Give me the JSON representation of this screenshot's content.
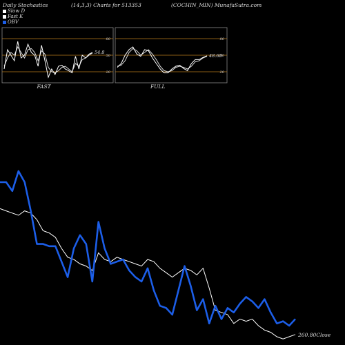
{
  "header": {
    "left": "Daily Stochastics",
    "center": "(14,3,3) Charts for 513353",
    "right": "(COCHIN_MIN) MunafaSutra.com"
  },
  "legend": [
    {
      "label": "Slow  D",
      "color": "#ffffff"
    },
    {
      "label": "Fast K",
      "color": "#ffffff"
    },
    {
      "label": "OBV",
      "color": "#1c5ee8"
    }
  ],
  "chart_data": [
    {
      "type": "line",
      "title": "FAST",
      "ylim": [
        0,
        100
      ],
      "yticks": [
        20,
        50,
        80
      ],
      "hlines": [
        20,
        50,
        80
      ],
      "value_label": "54.8",
      "series": [
        {
          "name": "Slow D",
          "values": [
            30,
            45,
            55,
            50,
            65,
            55,
            45,
            60,
            62,
            55,
            40,
            58,
            52,
            28,
            20,
            18,
            22,
            28,
            30,
            25,
            20,
            35,
            30,
            42,
            45,
            50,
            54
          ]
        },
        {
          "name": "Fast K",
          "values": [
            25,
            60,
            50,
            40,
            75,
            45,
            50,
            70,
            55,
            50,
            30,
            68,
            40,
            10,
            25,
            15,
            30,
            32,
            25,
            22,
            18,
            48,
            25,
            50,
            45,
            52,
            55
          ]
        }
      ]
    },
    {
      "type": "line",
      "title": "FULL",
      "ylim": [
        0,
        100
      ],
      "yticks": [
        20,
        50,
        80
      ],
      "hlines": [
        20,
        50,
        80
      ],
      "value_label": "48.68",
      "series": [
        {
          "name": "Slow D",
          "values": [
            30,
            32,
            40,
            55,
            62,
            58,
            50,
            55,
            60,
            52,
            42,
            30,
            22,
            20,
            22,
            28,
            30,
            28,
            25,
            30,
            38,
            40,
            45,
            48
          ]
        },
        {
          "name": "Fast K",
          "values": [
            28,
            35,
            50,
            60,
            65,
            52,
            48,
            60,
            58,
            45,
            35,
            25,
            18,
            18,
            25,
            30,
            32,
            26,
            22,
            35,
            42,
            42,
            46,
            49
          ]
        }
      ]
    },
    {
      "type": "line",
      "ylim": [
        0,
        100
      ],
      "value_label": "260.80Close",
      "series": [
        {
          "name": "OBV",
          "values": [
            70,
            70,
            66,
            75,
            70,
            57,
            42,
            42,
            41,
            41,
            34,
            27,
            40,
            46,
            42,
            25,
            52,
            40,
            33,
            34,
            35,
            30,
            27,
            25,
            31,
            21,
            14,
            13,
            10,
            21,
            32,
            23,
            12,
            17,
            6,
            14,
            8,
            13,
            11,
            15,
            18,
            16,
            13,
            17,
            11,
            6,
            7,
            5,
            8
          ]
        },
        {
          "name": "Close",
          "values": [
            58,
            57,
            56,
            55,
            57,
            56,
            53,
            48,
            47,
            45,
            40,
            36,
            35,
            33,
            32,
            30,
            38,
            35,
            34,
            36,
            35,
            34,
            33,
            32,
            35,
            34,
            31,
            29,
            27,
            29,
            31,
            30,
            28,
            31,
            22,
            12,
            11,
            10,
            6,
            8,
            7,
            8,
            5,
            3,
            2,
            0,
            -1,
            0,
            1
          ]
        }
      ]
    }
  ]
}
